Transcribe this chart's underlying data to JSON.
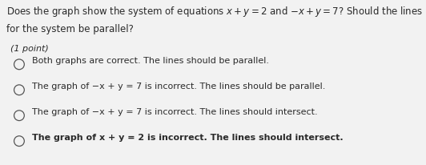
{
  "background_color": "#d8d8d8",
  "inner_background": "#f0f0f0",
  "title_line1": "Does the graph show the system of equations $x + y = 2$ and $-x + y = 7$? Should the lines",
  "title_line2": "for the system be parallel?",
  "points_label": "(1 point)",
  "options": [
    "Both graphs are correct. The lines should be parallel.",
    "The graph of $-x + y = 7$ is incorrect. The lines should be parallel.",
    "The graph of $-x + y = 7$ is incorrect. The lines should intersect.",
    "The graph of $x + y = 2$ is incorrect. The lines should intersect."
  ],
  "options_plain": [
    "Both graphs are correct. The lines should be parallel.",
    "The graph of −x + y = 7 is incorrect. The lines should be parallel.",
    "The graph of −x + y = 7 is incorrect. The lines should intersect.",
    "The graph of x + y = 2 is incorrect. The lines should intersect."
  ],
  "last_option_bold": true,
  "font_size_title": 8.5,
  "font_size_options": 8.0,
  "font_size_points": 8.0,
  "text_color": "#2a2a2a",
  "circle_color": "#555555"
}
